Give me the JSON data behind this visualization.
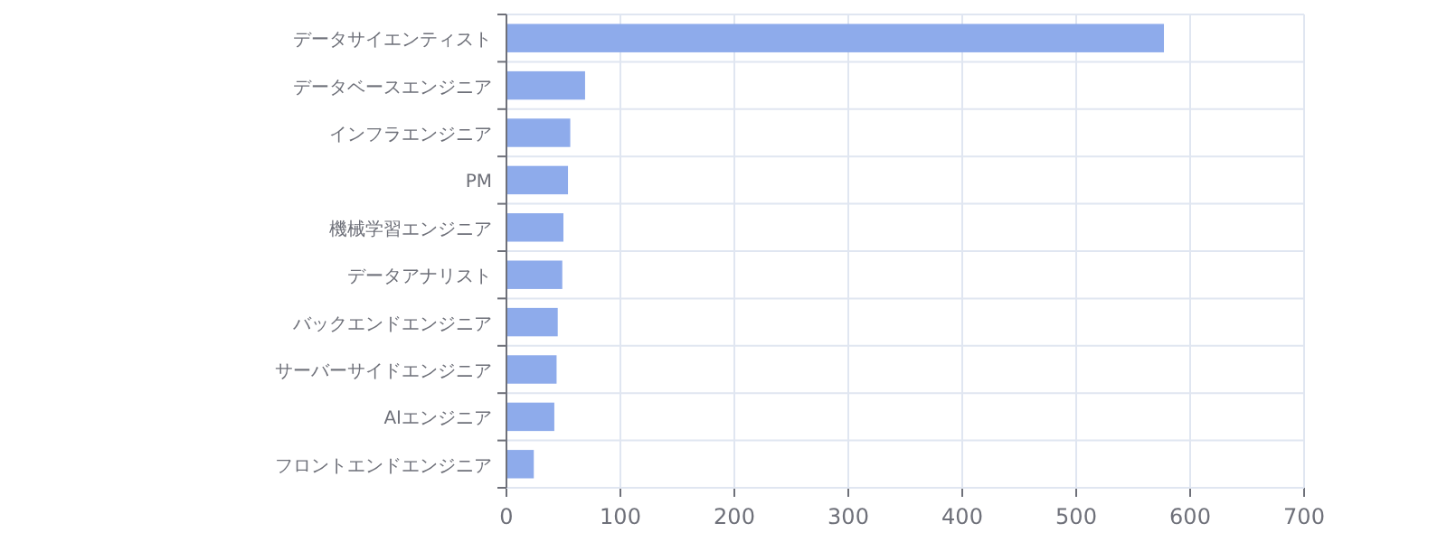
{
  "chart_data": {
    "type": "bar",
    "orientation": "horizontal",
    "categories": [
      "データサイエンティスト",
      "データベースエンジニア",
      "インフラエンジニア",
      "PM",
      "機械学習エンジニア",
      "データアナリスト",
      "バックエンドエンジニア",
      "サーバーサイドエンジニア",
      "AIエンジニア",
      "フロントエンドエンジニア"
    ],
    "values": [
      577,
      69,
      56,
      54,
      50,
      49,
      45,
      44,
      42,
      24
    ],
    "color": "#8eabeb",
    "xlim": [
      0,
      700
    ],
    "xticks": [
      0,
      100,
      200,
      300,
      400,
      500,
      600,
      700
    ],
    "grid": true
  }
}
